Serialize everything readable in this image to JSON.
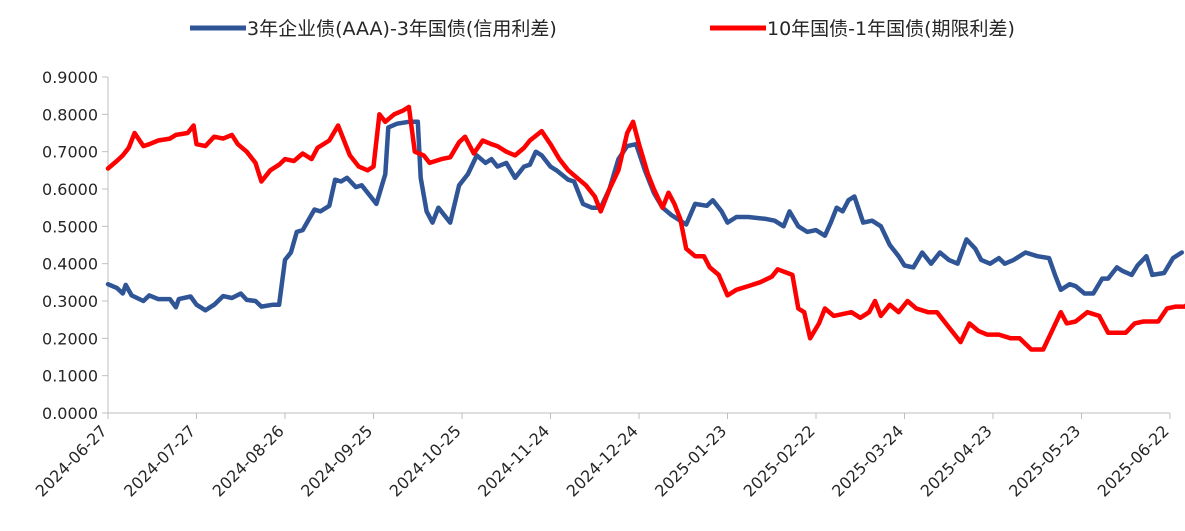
{
  "chart_data": {
    "type": "line",
    "title": "",
    "xlabel": "",
    "ylabel": "",
    "x_ticks": [
      "2024-06-27",
      "2024-07-27",
      "2024-08-26",
      "2024-09-25",
      "2024-10-25",
      "2024-11-24",
      "2024-12-24",
      "2025-01-23",
      "2025-02-22",
      "2025-03-24",
      "2025-04-23",
      "2025-05-23",
      "2025-06-22"
    ],
    "x_range": [
      "2024-06-27",
      "2025-07-01"
    ],
    "y_ticks": [
      "0.0000",
      "0.1000",
      "0.2000",
      "0.3000",
      "0.4000",
      "0.5000",
      "0.6000",
      "0.7000",
      "0.8000",
      "0.9000"
    ],
    "ylim": [
      0,
      0.9
    ],
    "legend_position": "top",
    "grid": false,
    "series": [
      {
        "name": "3年企业债(AAA)-3年国债(信用利差)",
        "color": "#2F5597",
        "points": [
          [
            "2024-06-27",
            0.345
          ],
          [
            "2024-06-30",
            0.335
          ],
          [
            "2024-07-02",
            0.32
          ],
          [
            "2024-07-03",
            0.343
          ],
          [
            "2024-07-05",
            0.315
          ],
          [
            "2024-07-09",
            0.3
          ],
          [
            "2024-07-11",
            0.315
          ],
          [
            "2024-07-14",
            0.305
          ],
          [
            "2024-07-18",
            0.305
          ],
          [
            "2024-07-20",
            0.283
          ],
          [
            "2024-07-21",
            0.305
          ],
          [
            "2024-07-25",
            0.312
          ],
          [
            "2024-07-27",
            0.29
          ],
          [
            "2024-07-30",
            0.275
          ],
          [
            "2024-08-02",
            0.29
          ],
          [
            "2024-08-05",
            0.313
          ],
          [
            "2024-08-08",
            0.308
          ],
          [
            "2024-08-11",
            0.32
          ],
          [
            "2024-08-13",
            0.303
          ],
          [
            "2024-08-16",
            0.3
          ],
          [
            "2024-08-18",
            0.285
          ],
          [
            "2024-08-22",
            0.29
          ],
          [
            "2024-08-24",
            0.29
          ],
          [
            "2024-08-26",
            0.41
          ],
          [
            "2024-08-28",
            0.43
          ],
          [
            "2024-08-30",
            0.485
          ],
          [
            "2024-09-01",
            0.49
          ],
          [
            "2024-09-05",
            0.545
          ],
          [
            "2024-09-07",
            0.54
          ],
          [
            "2024-09-10",
            0.555
          ],
          [
            "2024-09-12",
            0.625
          ],
          [
            "2024-09-14",
            0.62
          ],
          [
            "2024-09-16",
            0.63
          ],
          [
            "2024-09-19",
            0.605
          ],
          [
            "2024-09-21",
            0.61
          ],
          [
            "2024-09-24",
            0.58
          ],
          [
            "2024-09-26",
            0.56
          ],
          [
            "2024-09-29",
            0.64
          ],
          [
            "2024-09-30",
            0.765
          ],
          [
            "2024-10-03",
            0.775
          ],
          [
            "2024-10-07",
            0.78
          ],
          [
            "2024-10-10",
            0.78
          ],
          [
            "2024-10-11",
            0.63
          ],
          [
            "2024-10-13",
            0.54
          ],
          [
            "2024-10-15",
            0.51
          ],
          [
            "2024-10-17",
            0.55
          ],
          [
            "2024-10-21",
            0.51
          ],
          [
            "2024-10-24",
            0.61
          ],
          [
            "2024-10-27",
            0.64
          ],
          [
            "2024-10-30",
            0.69
          ],
          [
            "2024-11-02",
            0.67
          ],
          [
            "2024-11-04",
            0.68
          ],
          [
            "2024-11-06",
            0.66
          ],
          [
            "2024-11-09",
            0.67
          ],
          [
            "2024-11-12",
            0.63
          ],
          [
            "2024-11-15",
            0.66
          ],
          [
            "2024-11-17",
            0.665
          ],
          [
            "2024-11-19",
            0.7
          ],
          [
            "2024-11-21",
            0.69
          ],
          [
            "2024-11-24",
            0.66
          ],
          [
            "2024-11-26",
            0.65
          ],
          [
            "2024-11-30",
            0.625
          ],
          [
            "2024-12-02",
            0.62
          ],
          [
            "2024-12-05",
            0.56
          ],
          [
            "2024-12-08",
            0.55
          ],
          [
            "2024-12-11",
            0.55
          ],
          [
            "2024-12-14",
            0.6
          ],
          [
            "2024-12-17",
            0.68
          ],
          [
            "2024-12-20",
            0.715
          ],
          [
            "2024-12-23",
            0.72
          ],
          [
            "2024-12-26",
            0.65
          ],
          [
            "2024-12-29",
            0.59
          ],
          [
            "2025-01-01",
            0.55
          ],
          [
            "2025-01-04",
            0.53
          ],
          [
            "2025-01-06",
            0.52
          ],
          [
            "2025-01-09",
            0.505
          ],
          [
            "2025-01-12",
            0.56
          ],
          [
            "2025-01-16",
            0.555
          ],
          [
            "2025-01-18",
            0.57
          ],
          [
            "2025-01-21",
            0.54
          ],
          [
            "2025-01-23",
            0.51
          ],
          [
            "2025-01-26",
            0.525
          ],
          [
            "2025-01-30",
            0.525
          ],
          [
            "2025-02-05",
            0.52
          ],
          [
            "2025-02-08",
            0.515
          ],
          [
            "2025-02-11",
            0.5
          ],
          [
            "2025-02-13",
            0.54
          ],
          [
            "2025-02-16",
            0.5
          ],
          [
            "2025-02-19",
            0.485
          ],
          [
            "2025-02-22",
            0.49
          ],
          [
            "2025-02-25",
            0.475
          ],
          [
            "2025-02-27",
            0.51
          ],
          [
            "2025-03-01",
            0.55
          ],
          [
            "2025-03-03",
            0.54
          ],
          [
            "2025-03-05",
            0.57
          ],
          [
            "2025-03-07",
            0.58
          ],
          [
            "2025-03-10",
            0.51
          ],
          [
            "2025-03-13",
            0.515
          ],
          [
            "2025-03-16",
            0.5
          ],
          [
            "2025-03-19",
            0.45
          ],
          [
            "2025-03-22",
            0.42
          ],
          [
            "2025-03-24",
            0.395
          ],
          [
            "2025-03-27",
            0.39
          ],
          [
            "2025-03-30",
            0.43
          ],
          [
            "2025-04-02",
            0.4
          ],
          [
            "2025-04-05",
            0.43
          ],
          [
            "2025-04-08",
            0.41
          ],
          [
            "2025-04-11",
            0.4
          ],
          [
            "2025-04-14",
            0.465
          ],
          [
            "2025-04-17",
            0.44
          ],
          [
            "2025-04-19",
            0.41
          ],
          [
            "2025-04-22",
            0.4
          ],
          [
            "2025-04-25",
            0.415
          ],
          [
            "2025-04-27",
            0.4
          ],
          [
            "2025-04-30",
            0.41
          ],
          [
            "2025-05-04",
            0.43
          ],
          [
            "2025-05-08",
            0.42
          ],
          [
            "2025-05-12",
            0.415
          ],
          [
            "2025-05-14",
            0.37
          ],
          [
            "2025-05-16",
            0.33
          ],
          [
            "2025-05-19",
            0.345
          ],
          [
            "2025-05-21",
            0.34
          ],
          [
            "2025-05-24",
            0.32
          ],
          [
            "2025-05-27",
            0.32
          ],
          [
            "2025-05-30",
            0.36
          ],
          [
            "2025-06-01",
            0.36
          ],
          [
            "2025-06-04",
            0.39
          ],
          [
            "2025-06-06",
            0.38
          ],
          [
            "2025-06-09",
            0.37
          ],
          [
            "2025-06-11",
            0.395
          ],
          [
            "2025-06-14",
            0.42
          ],
          [
            "2025-06-16",
            0.37
          ],
          [
            "2025-06-20",
            0.375
          ],
          [
            "2025-06-23",
            0.415
          ],
          [
            "2025-06-26",
            0.43
          ]
        ]
      },
      {
        "name": "10年国债-1年国债(期限利差)",
        "color": "#FF0000",
        "points": [
          [
            "2024-06-27",
            0.655
          ],
          [
            "2024-06-30",
            0.675
          ],
          [
            "2024-07-02",
            0.69
          ],
          [
            "2024-07-04",
            0.71
          ],
          [
            "2024-07-06",
            0.75
          ],
          [
            "2024-07-09",
            0.715
          ],
          [
            "2024-07-11",
            0.72
          ],
          [
            "2024-07-14",
            0.73
          ],
          [
            "2024-07-18",
            0.735
          ],
          [
            "2024-07-20",
            0.745
          ],
          [
            "2024-07-24",
            0.75
          ],
          [
            "2024-07-26",
            0.77
          ],
          [
            "2024-07-27",
            0.72
          ],
          [
            "2024-07-30",
            0.715
          ],
          [
            "2024-08-02",
            0.74
          ],
          [
            "2024-08-05",
            0.735
          ],
          [
            "2024-08-08",
            0.745
          ],
          [
            "2024-08-10",
            0.72
          ],
          [
            "2024-08-13",
            0.7
          ],
          [
            "2024-08-16",
            0.67
          ],
          [
            "2024-08-18",
            0.62
          ],
          [
            "2024-08-21",
            0.65
          ],
          [
            "2024-08-24",
            0.665
          ],
          [
            "2024-08-26",
            0.68
          ],
          [
            "2024-08-29",
            0.675
          ],
          [
            "2024-09-01",
            0.695
          ],
          [
            "2024-09-04",
            0.68
          ],
          [
            "2024-09-06",
            0.71
          ],
          [
            "2024-09-10",
            0.73
          ],
          [
            "2024-09-13",
            0.77
          ],
          [
            "2024-09-15",
            0.73
          ],
          [
            "2024-09-17",
            0.69
          ],
          [
            "2024-09-20",
            0.66
          ],
          [
            "2024-09-23",
            0.65
          ],
          [
            "2024-09-25",
            0.66
          ],
          [
            "2024-09-27",
            0.8
          ],
          [
            "2024-09-29",
            0.78
          ],
          [
            "2024-10-02",
            0.8
          ],
          [
            "2024-10-05",
            0.81
          ],
          [
            "2024-10-07",
            0.82
          ],
          [
            "2024-10-09",
            0.7
          ],
          [
            "2024-10-12",
            0.69
          ],
          [
            "2024-10-14",
            0.67
          ],
          [
            "2024-10-18",
            0.68
          ],
          [
            "2024-10-21",
            0.685
          ],
          [
            "2024-10-24",
            0.725
          ],
          [
            "2024-10-26",
            0.74
          ],
          [
            "2024-10-29",
            0.695
          ],
          [
            "2024-11-01",
            0.73
          ],
          [
            "2024-11-04",
            0.72
          ],
          [
            "2024-11-06",
            0.715
          ],
          [
            "2024-11-09",
            0.7
          ],
          [
            "2024-11-12",
            0.69
          ],
          [
            "2024-11-15",
            0.71
          ],
          [
            "2024-11-17",
            0.73
          ],
          [
            "2024-11-21",
            0.755
          ],
          [
            "2024-11-24",
            0.72
          ],
          [
            "2024-11-27",
            0.68
          ],
          [
            "2024-11-30",
            0.65
          ],
          [
            "2024-12-03",
            0.63
          ],
          [
            "2024-12-06",
            0.61
          ],
          [
            "2024-12-09",
            0.58
          ],
          [
            "2024-12-11",
            0.54
          ],
          [
            "2024-12-14",
            0.6
          ],
          [
            "2024-12-17",
            0.65
          ],
          [
            "2024-12-20",
            0.75
          ],
          [
            "2024-12-22",
            0.78
          ],
          [
            "2024-12-24",
            0.72
          ],
          [
            "2024-12-27",
            0.64
          ],
          [
            "2024-12-29",
            0.6
          ],
          [
            "2025-01-01",
            0.55
          ],
          [
            "2025-01-03",
            0.59
          ],
          [
            "2025-01-05",
            0.56
          ],
          [
            "2025-01-07",
            0.52
          ],
          [
            "2025-01-09",
            0.44
          ],
          [
            "2025-01-12",
            0.42
          ],
          [
            "2025-01-15",
            0.42
          ],
          [
            "2025-01-17",
            0.39
          ],
          [
            "2025-01-20",
            0.37
          ],
          [
            "2025-01-23",
            0.315
          ],
          [
            "2025-01-26",
            0.33
          ],
          [
            "2025-01-30",
            0.34
          ],
          [
            "2025-02-03",
            0.35
          ],
          [
            "2025-02-07",
            0.365
          ],
          [
            "2025-02-09",
            0.385
          ],
          [
            "2025-02-14",
            0.37
          ],
          [
            "2025-02-16",
            0.28
          ],
          [
            "2025-02-18",
            0.27
          ],
          [
            "2025-02-20",
            0.2
          ],
          [
            "2025-02-23",
            0.24
          ],
          [
            "2025-02-25",
            0.28
          ],
          [
            "2025-02-28",
            0.26
          ],
          [
            "2025-03-03",
            0.265
          ],
          [
            "2025-03-06",
            0.27
          ],
          [
            "2025-03-09",
            0.255
          ],
          [
            "2025-03-12",
            0.27
          ],
          [
            "2025-03-14",
            0.3
          ],
          [
            "2025-03-16",
            0.26
          ],
          [
            "2025-03-19",
            0.29
          ],
          [
            "2025-03-22",
            0.27
          ],
          [
            "2025-03-25",
            0.3
          ],
          [
            "2025-03-28",
            0.28
          ],
          [
            "2025-04-01",
            0.27
          ],
          [
            "2025-04-04",
            0.27
          ],
          [
            "2025-04-07",
            0.24
          ],
          [
            "2025-04-10",
            0.21
          ],
          [
            "2025-04-12",
            0.19
          ],
          [
            "2025-04-15",
            0.24
          ],
          [
            "2025-04-18",
            0.22
          ],
          [
            "2025-04-21",
            0.21
          ],
          [
            "2025-04-25",
            0.21
          ],
          [
            "2025-04-29",
            0.2
          ],
          [
            "2025-05-02",
            0.2
          ],
          [
            "2025-05-06",
            0.17
          ],
          [
            "2025-05-10",
            0.17
          ],
          [
            "2025-05-13",
            0.22
          ],
          [
            "2025-05-16",
            0.27
          ],
          [
            "2025-05-18",
            0.24
          ],
          [
            "2025-05-21",
            0.245
          ],
          [
            "2025-05-25",
            0.27
          ],
          [
            "2025-05-29",
            0.26
          ],
          [
            "2025-06-01",
            0.215
          ],
          [
            "2025-06-04",
            0.215
          ],
          [
            "2025-06-07",
            0.215
          ],
          [
            "2025-06-10",
            0.24
          ],
          [
            "2025-06-13",
            0.245
          ],
          [
            "2025-06-15",
            0.245
          ],
          [
            "2025-06-18",
            0.245
          ],
          [
            "2025-06-21",
            0.28
          ],
          [
            "2025-06-24",
            0.285
          ],
          [
            "2025-06-27",
            0.285
          ],
          [
            "2025-06-30",
            0.305
          ]
        ]
      }
    ]
  }
}
